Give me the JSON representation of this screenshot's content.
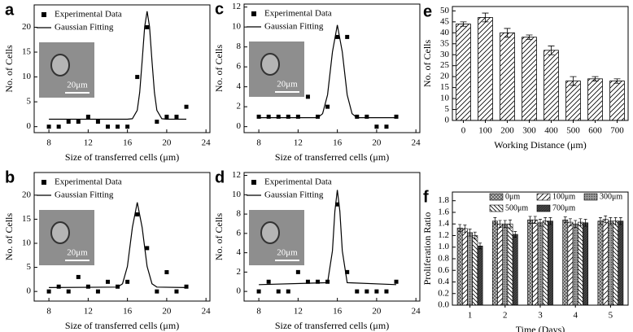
{
  "chart_data": [
    {
      "type": "scatter",
      "label": "a",
      "x_label": "Size of transferred cells (μm)",
      "y_label": "No. of Cells",
      "inset_scale": "20μm",
      "xlim": [
        6.5,
        24.4
      ],
      "ylim": [
        -1.2,
        24.5
      ],
      "xticks": [
        8,
        12,
        16,
        20,
        24
      ],
      "yticks": [
        0,
        5,
        10,
        15,
        20
      ],
      "series": [
        {
          "name": "Experimental Data",
          "style": "marker",
          "color": "#000000",
          "x": [
            8,
            9,
            10,
            11,
            12,
            13,
            14,
            15,
            16,
            17,
            18,
            19,
            20,
            21,
            22
          ],
          "values": [
            0,
            0,
            1,
            1,
            2,
            1,
            0,
            0,
            0,
            10,
            20,
            1,
            2,
            2,
            4
          ]
        },
        {
          "name": "Gaussian Fitting",
          "style": "line",
          "color": "#000000",
          "x": [
            8,
            16,
            16.5,
            17,
            17.25,
            17.5,
            17.75,
            18,
            18.25,
            18.5,
            18.75,
            19,
            19.5,
            20,
            22
          ],
          "values": [
            1.5,
            1.5,
            1.6,
            3.3,
            6.9,
            13.2,
            20.1,
            23.2,
            20.1,
            13.2,
            6.9,
            3.3,
            1.6,
            1.5,
            1.5
          ]
        }
      ]
    },
    {
      "type": "scatter",
      "label": "b",
      "x_label": "Size of transferred cells (μm)",
      "y_label": "No. of Cells",
      "inset_scale": "20μm",
      "xlim": [
        6.5,
        24.4
      ],
      "ylim": [
        -2,
        24.7
      ],
      "xticks": [
        8,
        12,
        16,
        20,
        24
      ],
      "yticks": [
        0,
        5,
        10,
        15,
        20
      ],
      "series": [
        {
          "name": "Experimental Data",
          "style": "marker",
          "color": "#000000",
          "x": [
            8,
            9,
            10,
            11,
            12,
            13,
            14,
            15,
            16,
            17,
            18,
            19,
            20,
            21,
            22
          ],
          "values": [
            0,
            1,
            0,
            3,
            1,
            0,
            2,
            1,
            2,
            16,
            9,
            0,
            4,
            0,
            1
          ]
        },
        {
          "name": "Gaussian Fitting",
          "style": "line",
          "color": "#000000",
          "x": [
            8,
            15,
            15.5,
            16,
            16.5,
            17,
            17.5,
            18,
            18.5,
            19,
            22
          ],
          "values": [
            0.8,
            0.9,
            1.6,
            5.2,
            13.3,
            18.5,
            13.3,
            5.2,
            1.6,
            0.9,
            0.8
          ]
        }
      ]
    },
    {
      "type": "scatter",
      "label": "c",
      "x_label": "Size of transferred cells (μm)",
      "y_label": "No. of Cells",
      "inset_scale": "20μm",
      "xlim": [
        6.5,
        24.4
      ],
      "ylim": [
        -0.6,
        12.3
      ],
      "xticks": [
        8,
        12,
        16,
        20,
        24
      ],
      "yticks": [
        0,
        2,
        4,
        6,
        8,
        10,
        12
      ],
      "series": [
        {
          "name": "Experimental Data",
          "style": "marker",
          "color": "#000000",
          "x": [
            8,
            9,
            10,
            11,
            12,
            13,
            14,
            15,
            16,
            17,
            18,
            19,
            20,
            21,
            22
          ],
          "values": [
            1,
            1,
            1,
            1,
            1,
            3,
            1,
            2,
            9,
            9,
            1,
            1,
            0,
            0,
            1
          ]
        },
        {
          "name": "Gaussian Fitting",
          "style": "line",
          "color": "#000000",
          "x": [
            8,
            14,
            14.5,
            15,
            15.5,
            16,
            16.5,
            17,
            17.5,
            18,
            22
          ],
          "values": [
            0.9,
            0.9,
            1.3,
            3.2,
            7.5,
            10.2,
            7.5,
            3.2,
            1.3,
            0.9,
            0.9
          ]
        }
      ]
    },
    {
      "type": "scatter",
      "label": "d",
      "x_label": "Size of transferred cells (μm)",
      "y_label": "No. of Cells",
      "inset_scale": "20μm",
      "xlim": [
        6.5,
        24.4
      ],
      "ylim": [
        -1,
        12.3
      ],
      "xticks": [
        8,
        12,
        16,
        20,
        24
      ],
      "yticks": [
        0,
        2,
        4,
        6,
        8,
        10,
        12
      ],
      "series": [
        {
          "name": "Experimental Data",
          "style": "marker",
          "color": "#000000",
          "x": [
            8,
            9,
            10,
            11,
            12,
            13,
            14,
            15,
            16,
            17,
            18,
            19,
            20,
            21,
            22
          ],
          "values": [
            0,
            1,
            0,
            0,
            2,
            1,
            1,
            1,
            9,
            2,
            0,
            0,
            0,
            0,
            1
          ]
        },
        {
          "name": "Gaussian Fitting",
          "style": "line",
          "color": "#000000",
          "x": [
            8,
            15,
            15.5,
            15.75,
            16,
            16.25,
            16.5,
            17,
            22
          ],
          "values": [
            0.7,
            0.9,
            4.2,
            8.3,
            10.5,
            8.3,
            4.2,
            0.9,
            0.7
          ]
        }
      ]
    },
    {
      "type": "bar",
      "label": "e",
      "x_label": "Working Distance (μm)",
      "y_label": "No. of Cells",
      "hatch": "diag",
      "categories": [
        "0",
        "100",
        "200",
        "300",
        "400",
        "500",
        "600",
        "700"
      ],
      "values": [
        44,
        47,
        40,
        38,
        32,
        18,
        19,
        18
      ],
      "errors": [
        1,
        2,
        2,
        1,
        2,
        2,
        1,
        1
      ],
      "ylim": [
        0,
        52
      ],
      "yticks": [
        0,
        5,
        10,
        15,
        20,
        25,
        30,
        35,
        40,
        45,
        50
      ]
    },
    {
      "type": "grouped_bar",
      "label": "f",
      "x_label": "Time (Days)",
      "y_label": "Proliferation Ratio",
      "categories": [
        "1",
        "2",
        "3",
        "4",
        "5"
      ],
      "ylim": [
        0,
        1.95
      ],
      "yticks": [
        {
          "value": 0,
          "label": "0.0"
        },
        {
          "value": 0.2,
          "label": "0.2"
        },
        {
          "value": 0.4,
          "label": "0.4"
        },
        {
          "value": 0.6,
          "label": "0.6"
        },
        {
          "value": 0.8,
          "label": "0.8"
        },
        {
          "value": 1,
          "label": "1.0"
        },
        {
          "value": 1.2,
          "label": "1.2"
        },
        {
          "value": 1.4,
          "label": "1.4"
        },
        {
          "value": 1.6,
          "label": "1.6"
        },
        {
          "value": 1.8,
          "label": "1.8"
        }
      ],
      "series": [
        {
          "name": "0μm",
          "hatch": "cross",
          "values": [
            1.33,
            1.45,
            1.47,
            1.47,
            1.45
          ],
          "errors": [
            0.06,
            0.06,
            0.06,
            0.05,
            0.06
          ]
        },
        {
          "name": "100μm",
          "hatch": "diag",
          "values": [
            1.32,
            1.4,
            1.47,
            1.43,
            1.48
          ],
          "errors": [
            0.06,
            0.06,
            0.06,
            0.06,
            0.06
          ]
        },
        {
          "name": "300μm",
          "hatch": "dots",
          "values": [
            1.25,
            1.4,
            1.42,
            1.4,
            1.45
          ],
          "errors": [
            0.06,
            0.06,
            0.06,
            0.06,
            0.06
          ]
        },
        {
          "name": "500μm",
          "hatch": "backdiag",
          "values": [
            1.2,
            1.4,
            1.45,
            1.43,
            1.45
          ],
          "errors": [
            0.06,
            0.07,
            0.06,
            0.06,
            0.06
          ]
        },
        {
          "name": "700μm",
          "hatch": "dark",
          "values": [
            1.02,
            1.22,
            1.45,
            1.42,
            1.45
          ],
          "errors": [
            0.05,
            0.05,
            0.06,
            0.06,
            0.06
          ]
        }
      ]
    }
  ]
}
